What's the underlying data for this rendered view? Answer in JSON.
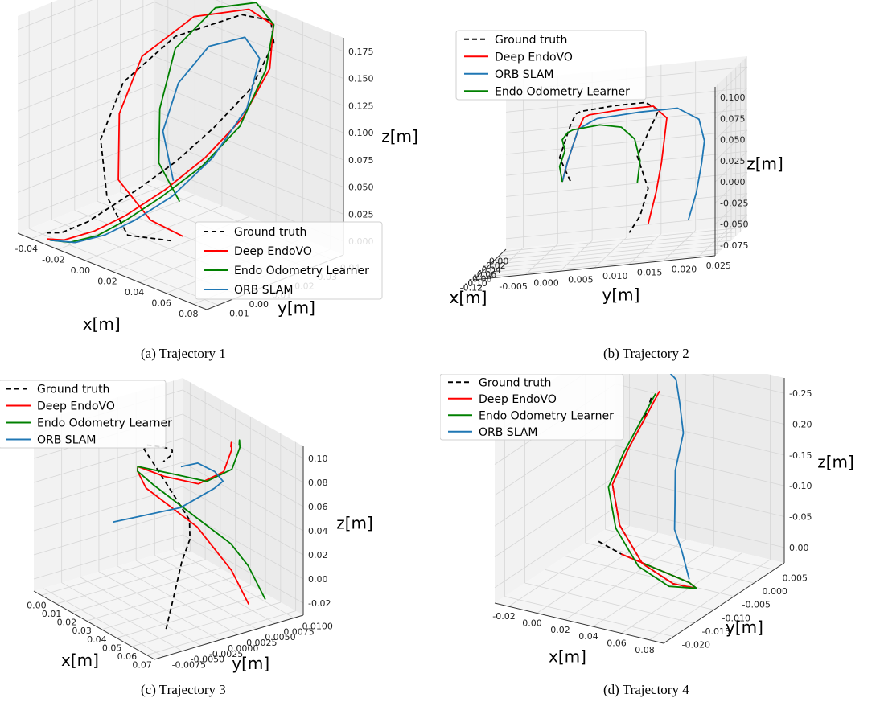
{
  "captions": [
    "(a) Trajectory 1",
    "(b) Trajectory 2",
    "(c) Trajectory 3",
    "(d) Trajectory 4"
  ],
  "colors": {
    "Ground truth": "#000000",
    "Deep EndoVO": "#ff0000",
    "ORB SLAM": "#1f77b4",
    "Endo Odometry Learner": "#008000"
  },
  "chart_data": [
    {
      "type": "line",
      "subtype": "3d-trajectory",
      "xlabel": "x[m]",
      "ylabel": "y[m]",
      "zlabel": "z[m]",
      "xticks": [
        "-0.04",
        "-0.02",
        "0.00",
        "0.02",
        "0.04",
        "0.06",
        "0.08"
      ],
      "yticks": [
        "-0.01",
        "0.00",
        "0.01",
        "0.02",
        "0.03",
        "0.04"
      ],
      "zticks": [
        "0.000",
        "0.025",
        "0.050",
        "0.075",
        "0.100",
        "0.125",
        "0.150",
        "0.175"
      ],
      "xlim": [
        -0.05,
        0.08
      ],
      "ylim": [
        -0.02,
        0.04
      ],
      "zlim": [
        0,
        0.18
      ],
      "legend": [
        "Ground truth",
        "Deep EndoVO",
        "Endo Odometry Learner",
        "ORB SLAM"
      ],
      "legend_position": "lower-right",
      "grid": true,
      "series": [
        {
          "name": "Ground truth",
          "style": "dashed",
          "x": [
            0.04,
            0.01,
            -0.02,
            -0.04,
            -0.04,
            -0.02,
            0.01,
            0.03,
            0.04,
            0.04,
            0.03,
            0.02,
            0.01,
            0.0,
            -0.01,
            -0.02,
            -0.03
          ],
          "y": [
            -0.01,
            -0.01,
            0.0,
            0.01,
            0.02,
            0.03,
            0.04,
            0.04,
            0.035,
            0.025,
            0.015,
            0.005,
            -0.005,
            -0.01,
            -0.015,
            -0.02,
            -0.02
          ],
          "z": [
            0.03,
            0.02,
            0.03,
            0.06,
            0.1,
            0.14,
            0.165,
            0.17,
            0.16,
            0.13,
            0.1,
            0.075,
            0.055,
            0.04,
            0.025,
            0.015,
            0.01
          ]
        },
        {
          "name": "Deep EndoVO",
          "x": [
            0.04,
            0.01,
            -0.02,
            -0.035,
            -0.035,
            -0.015,
            0.015,
            0.035,
            0.045,
            0.042,
            0.032,
            0.02,
            0.008,
            -0.005,
            -0.018,
            -0.03
          ],
          "y": [
            -0.005,
            0.0,
            0.005,
            0.015,
            0.025,
            0.035,
            0.04,
            0.038,
            0.03,
            0.02,
            0.01,
            0.0,
            -0.01,
            -0.015,
            -0.02,
            -0.02
          ],
          "z": [
            0.03,
            0.025,
            0.04,
            0.08,
            0.12,
            0.155,
            0.172,
            0.17,
            0.145,
            0.11,
            0.08,
            0.055,
            0.035,
            0.02,
            0.01,
            0.005
          ]
        },
        {
          "name": "Endo Odometry Learner",
          "x": [
            0.03,
            0.0,
            -0.015,
            -0.02,
            -0.005,
            0.02,
            0.04,
            0.05,
            0.048,
            0.038,
            0.025,
            0.012,
            0.0,
            -0.014,
            -0.028
          ],
          "y": [
            0.0,
            0.01,
            0.02,
            0.03,
            0.038,
            0.04,
            0.035,
            0.025,
            0.015,
            0.005,
            -0.005,
            -0.012,
            -0.017,
            -0.02,
            -0.02
          ],
          "z": [
            0.05,
            0.06,
            0.09,
            0.13,
            0.165,
            0.18,
            0.175,
            0.15,
            0.11,
            0.08,
            0.055,
            0.035,
            0.02,
            0.01,
            0.005
          ]
        },
        {
          "name": "ORB SLAM",
          "x": [
            0.01,
            -0.005,
            -0.01,
            0.0,
            0.02,
            0.038,
            0.045,
            0.04,
            0.028,
            0.015,
            0.002,
            -0.012,
            -0.028
          ],
          "y": [
            0.01,
            0.015,
            0.025,
            0.032,
            0.035,
            0.03,
            0.02,
            0.008,
            -0.002,
            -0.01,
            -0.015,
            -0.019,
            -0.02
          ],
          "z": [
            0.05,
            0.08,
            0.11,
            0.14,
            0.155,
            0.15,
            0.12,
            0.085,
            0.055,
            0.035,
            0.02,
            0.01,
            0.005
          ]
        }
      ]
    },
    {
      "type": "line",
      "subtype": "3d-trajectory",
      "xlabel": "x[m]",
      "ylabel": "y[m]",
      "zlabel": "z[m]",
      "xticks": [
        "0.00",
        "-0.02",
        "-0.04",
        "-0.06",
        "-0.08",
        "-0.10",
        "-0.12"
      ],
      "yticks": [
        "-0.005",
        "0.000",
        "0.005",
        "0.010",
        "0.015",
        "0.020",
        "0.025"
      ],
      "zticks": [
        "-0.075",
        "-0.050",
        "-0.025",
        "0.000",
        "0.025",
        "0.050",
        "0.075",
        "0.100"
      ],
      "xlim": [
        -0.12,
        0.0
      ],
      "ylim": [
        -0.005,
        0.025
      ],
      "zlim": [
        -0.085,
        0.105
      ],
      "legend": [
        "Ground truth",
        "Deep EndoVO",
        "ORB SLAM",
        "Endo Odometry Learner"
      ],
      "legend_position": "top-left",
      "grid": true,
      "series": [
        {
          "name": "Ground truth",
          "style": "dashed",
          "x": [
            -0.06,
            -0.05,
            -0.04,
            -0.03,
            -0.02,
            -0.01,
            -0.02,
            -0.04,
            -0.06,
            -0.08,
            -0.1,
            -0.11,
            -0.11,
            -0.1
          ],
          "y": [
            0.005,
            0.004,
            0.005,
            0.006,
            0.007,
            0.008,
            0.012,
            0.015,
            0.016,
            0.014,
            0.012,
            0.013,
            0.012,
            0.011
          ],
          "z": [
            0.0,
            0.03,
            0.05,
            0.07,
            0.085,
            0.09,
            0.09,
            0.085,
            0.07,
            0.04,
            0.01,
            -0.03,
            -0.06,
            -0.075
          ]
        },
        {
          "name": "Deep EndoVO",
          "x": [
            -0.06,
            -0.05,
            -0.04,
            -0.03,
            -0.02,
            -0.01,
            -0.02,
            -0.04,
            -0.06,
            -0.08,
            -0.1,
            -0.11,
            -0.11
          ],
          "y": [
            0.004,
            0.005,
            0.006,
            0.007,
            0.008,
            0.009,
            0.013,
            0.016,
            0.017,
            0.016,
            0.015,
            0.014,
            0.013
          ],
          "z": [
            0.0,
            0.025,
            0.045,
            0.065,
            0.08,
            0.085,
            0.085,
            0.08,
            0.06,
            0.03,
            0.0,
            -0.035,
            -0.07
          ]
        },
        {
          "name": "ORB SLAM",
          "x": [
            -0.06,
            -0.05,
            -0.04,
            -0.03,
            -0.02,
            -0.01,
            -0.02,
            -0.04,
            -0.06,
            -0.08,
            -0.1,
            -0.11,
            -0.11
          ],
          "y": [
            0.004,
            0.005,
            0.006,
            0.007,
            0.009,
            0.01,
            0.015,
            0.019,
            0.021,
            0.021,
            0.02,
            0.019,
            0.018
          ],
          "z": [
            0.0,
            0.025,
            0.045,
            0.065,
            0.075,
            0.08,
            0.08,
            0.075,
            0.055,
            0.025,
            -0.005,
            -0.04,
            -0.07
          ]
        },
        {
          "name": "Endo Odometry Learner",
          "x": [
            -0.06,
            -0.05,
            -0.04,
            -0.03,
            -0.02,
            -0.01,
            -0.02,
            -0.04,
            -0.06,
            -0.08,
            -0.1
          ],
          "y": [
            0.004,
            0.004,
            0.005,
            0.005,
            0.006,
            0.007,
            0.01,
            0.012,
            0.013,
            0.013,
            0.012
          ],
          "z": [
            0.0,
            0.02,
            0.04,
            0.055,
            0.065,
            0.07,
            0.07,
            0.06,
            0.04,
            0.01,
            -0.02
          ]
        }
      ]
    },
    {
      "type": "line",
      "subtype": "3d-trajectory",
      "xlabel": "x[m]",
      "ylabel": "y[m]",
      "zlabel": "z[m]",
      "xticks": [
        "0.00",
        "0.01",
        "0.02",
        "0.03",
        "0.04",
        "0.05",
        "0.06",
        "0.07"
      ],
      "yticks": [
        "-0.0075",
        "-0.0050",
        "-0.0025",
        "0.0000",
        "0.0025",
        "0.0050",
        "0.0075",
        "0.0100"
      ],
      "zticks": [
        "-0.02",
        "0.00",
        "0.02",
        "0.04",
        "0.06",
        "0.08",
        "0.10"
      ],
      "xlim": [
        0.0,
        0.07
      ],
      "ylim": [
        -0.0075,
        0.0105
      ],
      "zlim": [
        -0.03,
        0.11
      ],
      "legend": [
        "Ground truth",
        "Deep EndoVO",
        "Endo Odometry Learner",
        "ORB SLAM"
      ],
      "legend_position": "top-left",
      "grid": true,
      "series": [
        {
          "name": "Ground truth",
          "style": "dashed",
          "x": [
            0.06,
            0.055,
            0.05,
            0.045,
            0.04,
            0.035,
            0.03,
            0.028,
            0.03,
            0.035,
            0.03,
            0.025,
            0.02
          ],
          "y": [
            -0.004,
            -0.002,
            0.0,
            0.002,
            0.003,
            0.002,
            0.001,
            0.0,
            0.0,
            0.001,
            0.003,
            0.004,
            0.004
          ],
          "z": [
            -0.02,
            0.0,
            0.02,
            0.03,
            0.04,
            0.06,
            0.08,
            0.095,
            0.1,
            0.1,
            0.09,
            0.08,
            0.07
          ]
        },
        {
          "name": "Deep EndoVO",
          "x": [
            0.06,
            0.05,
            0.04,
            0.03,
            0.02,
            0.01,
            0.005,
            0.01,
            0.03,
            0.05,
            0.055,
            0.05,
            0.045,
            0.04
          ],
          "y": [
            0.006,
            0.006,
            0.006,
            0.006,
            0.005,
            0.004,
            0.004,
            0.003,
            0.002,
            0.002,
            0.004,
            0.006,
            0.007,
            0.008
          ],
          "z": [
            -0.02,
            0.0,
            0.01,
            0.02,
            0.03,
            0.04,
            0.05,
            0.06,
            0.07,
            0.08,
            0.09,
            0.1,
            0.1,
            0.09
          ]
        },
        {
          "name": "Endo Odometry Learner",
          "x": [
            0.06,
            0.05,
            0.04,
            0.03,
            0.02,
            0.01,
            0.005,
            0.01,
            0.03,
            0.05,
            0.055,
            0.05,
            0.045,
            0.04
          ],
          "y": [
            0.008,
            0.008,
            0.008,
            0.007,
            0.006,
            0.005,
            0.004,
            0.003,
            0.003,
            0.003,
            0.005,
            0.007,
            0.008,
            0.009
          ],
          "z": [
            -0.02,
            0.0,
            0.01,
            0.02,
            0.03,
            0.04,
            0.05,
            0.06,
            0.07,
            0.08,
            0.09,
            0.1,
            0.1,
            0.09
          ]
        },
        {
          "name": "ORB SLAM",
          "x": [
            0.01,
            0.015,
            0.02,
            0.025,
            0.03,
            0.035,
            0.04,
            0.045,
            0.045,
            0.04,
            0.035
          ],
          "y": [
            0.0,
            0.001,
            0.002,
            0.003,
            0.004,
            0.005,
            0.006,
            0.006,
            0.005,
            0.004,
            0.003
          ],
          "z": [
            0.02,
            0.025,
            0.03,
            0.035,
            0.04,
            0.05,
            0.06,
            0.07,
            0.08,
            0.085,
            0.08
          ]
        }
      ]
    },
    {
      "type": "line",
      "subtype": "3d-trajectory",
      "xlabel": "x[m]",
      "ylabel": "y[m]",
      "zlabel": "z[m]",
      "xticks": [
        "-0.02",
        "0.00",
        "0.02",
        "0.04",
        "0.06",
        "0.08"
      ],
      "yticks": [
        "-0.020",
        "-0.015",
        "-0.010",
        "-0.005",
        "0.000",
        "0.005"
      ],
      "zticks": [
        "0.00",
        "-0.05",
        "-0.10",
        "-0.15",
        "-0.20",
        "-0.25"
      ],
      "xlim": [
        -0.03,
        0.08
      ],
      "ylim": [
        -0.022,
        0.008
      ],
      "zlim": [
        -0.28,
        0.01
      ],
      "legend": [
        "Ground truth",
        "Deep EndoVO",
        "Endo Odometry Learner",
        "ORB SLAM"
      ],
      "legend_position": "top-left",
      "grid": true,
      "series": [
        {
          "name": "Ground truth",
          "style": "dashed",
          "x": [
            -0.02,
            0.0,
            0.02,
            0.04,
            0.06,
            0.07,
            0.06,
            0.04,
            0.02,
            0.01,
            0.015,
            0.02,
            0.02
          ],
          "y": [
            0.0,
            -0.002,
            -0.004,
            -0.006,
            -0.008,
            -0.01,
            -0.012,
            -0.012,
            -0.01,
            -0.008,
            -0.006,
            -0.004,
            -0.002
          ],
          "z": [
            -0.27,
            -0.27,
            -0.265,
            -0.26,
            -0.255,
            -0.25,
            -0.24,
            -0.22,
            -0.18,
            -0.13,
            -0.08,
            -0.04,
            -0.01
          ]
        },
        {
          "name": "Deep EndoVO",
          "x": [
            0.0,
            0.02,
            0.04,
            0.06,
            0.07,
            0.06,
            0.04,
            0.02,
            0.01,
            0.015,
            0.02,
            0.025
          ],
          "y": [
            -0.002,
            -0.004,
            -0.006,
            -0.008,
            -0.01,
            -0.012,
            -0.012,
            -0.01,
            -0.008,
            -0.006,
            -0.004,
            -0.002
          ],
          "z": [
            -0.27,
            -0.265,
            -0.26,
            -0.255,
            -0.25,
            -0.24,
            -0.22,
            -0.18,
            -0.13,
            -0.08,
            -0.04,
            0.0
          ]
        },
        {
          "name": "Endo Odometry Learner",
          "x": [
            0.02,
            0.04,
            0.06,
            0.07,
            0.06,
            0.04,
            0.02,
            0.01,
            0.015,
            0.02,
            0.025
          ],
          "y": [
            -0.004,
            -0.006,
            -0.008,
            -0.01,
            -0.013,
            -0.013,
            -0.011,
            -0.009,
            -0.007,
            -0.005,
            -0.003
          ],
          "z": [
            -0.265,
            -0.26,
            -0.255,
            -0.25,
            -0.24,
            -0.22,
            -0.18,
            -0.13,
            -0.08,
            -0.04,
            0.0
          ]
        },
        {
          "name": "ORB SLAM",
          "x": [
            0.06,
            0.05,
            0.04,
            0.035,
            0.03,
            0.03,
            0.025,
            0.02,
            0.015
          ],
          "y": [
            -0.008,
            -0.006,
            -0.004,
            -0.002,
            0.0,
            0.002,
            0.003,
            0.004,
            0.004
          ],
          "z": [
            -0.25,
            -0.22,
            -0.2,
            -0.17,
            -0.13,
            -0.08,
            -0.04,
            -0.01,
            0.0
          ]
        }
      ]
    }
  ]
}
